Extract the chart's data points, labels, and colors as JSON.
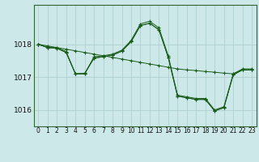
{
  "background_color": "#cce8e8",
  "grid_color": "#aacccc",
  "line_color": "#1a5c1a",
  "x_labels": [
    "0",
    "1",
    "2",
    "3",
    "4",
    "5",
    "6",
    "7",
    "8",
    "9",
    "10",
    "11",
    "12",
    "13",
    "14",
    "15",
    "16",
    "17",
    "18",
    "19",
    "20",
    "21",
    "22",
    "23"
  ],
  "ylim": [
    1015.5,
    1019.2
  ],
  "yticks": [
    1016,
    1017,
    1018
  ],
  "xlabel_fontsize": 5.5,
  "ylabel_fontsize": 6.5,
  "title_fontsize": 6.5,
  "flat": [
    1018.0,
    1017.95,
    1017.9,
    1017.85,
    1017.8,
    1017.75,
    1017.7,
    1017.65,
    1017.6,
    1017.55,
    1017.5,
    1017.45,
    1017.4,
    1017.35,
    1017.3,
    1017.25,
    1017.22,
    1017.2,
    1017.17,
    1017.15,
    1017.12,
    1017.1,
    1017.22,
    1017.22
  ],
  "zigzag1": [
    1018.0,
    1017.9,
    1017.9,
    1017.78,
    1017.1,
    1017.1,
    1017.62,
    1017.65,
    1017.7,
    1017.82,
    1018.12,
    1018.62,
    1018.7,
    1018.5,
    1017.65,
    1016.45,
    1016.4,
    1016.35,
    1016.35,
    1016.0,
    1016.1,
    1017.1,
    1017.25,
    1017.25
  ],
  "zigzag2": [
    1018.0,
    1017.9,
    1017.88,
    1017.75,
    1017.1,
    1017.1,
    1017.58,
    1017.62,
    1017.67,
    1017.79,
    1018.08,
    1018.57,
    1018.64,
    1018.44,
    1017.6,
    1016.42,
    1016.37,
    1016.32,
    1016.32,
    1015.97,
    1016.07,
    1017.07,
    1017.22,
    1017.22
  ],
  "zigzag3": [
    1018.0,
    1017.9,
    1017.88,
    1017.75,
    1017.1,
    1017.12,
    1017.58,
    1017.62,
    1017.67,
    1017.79,
    1018.08,
    1018.57,
    1018.64,
    1018.44,
    1017.6,
    1016.42,
    1016.37,
    1016.32,
    1016.32,
    1015.97,
    1016.07,
    1017.07,
    1017.22,
    1017.22
  ]
}
